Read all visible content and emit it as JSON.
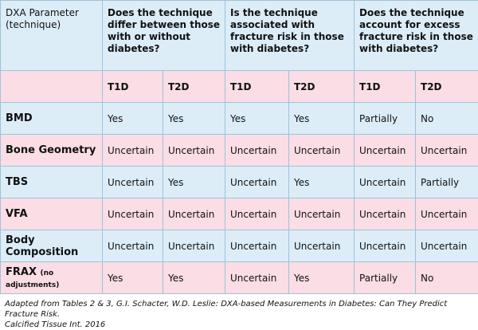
{
  "header": {
    "parameter": "DXA Parameter (technique)",
    "questions": [
      "Does the technique differ between those with or without diabetes?",
      "Is the technique associated with fracture risk in those with diabetes?",
      "Does the technique account for excess fracture risk in those with diabetes?"
    ]
  },
  "subheader": [
    "T1D",
    "T2D",
    "T1D",
    "T2D",
    "T1D",
    "T2D"
  ],
  "rows": [
    {
      "label": "BMD",
      "cells": [
        "Yes",
        "Yes",
        "Yes",
        "Yes",
        "Partially",
        "No"
      ]
    },
    {
      "label": "Bone Geometry",
      "cells": [
        "Uncertain",
        "Uncertain",
        "Uncertain",
        "Uncertain",
        "Uncertain",
        "Uncertain"
      ]
    },
    {
      "label": "TBS",
      "cells": [
        "Uncertain",
        "Yes",
        "Uncertain",
        "Yes",
        "Uncertain",
        "Partially"
      ]
    },
    {
      "label": "VFA",
      "cells": [
        "Uncertain",
        "Uncertain",
        "Uncertain",
        "Uncertain",
        "Uncertain",
        "Uncertain"
      ]
    },
    {
      "label": "Body Composition",
      "cells": [
        "Uncertain",
        "Uncertain",
        "Uncertain",
        "Uncertain",
        "Uncertain",
        "Uncertain"
      ]
    },
    {
      "label": "FRAX",
      "note": "(no adjustments)",
      "cells": [
        "Yes",
        "Yes",
        "Uncertain",
        "Yes",
        "Partially",
        "No"
      ]
    }
  ],
  "footnote": [
    "Adapted from Tables 2 & 3, G.I. Schacter, W.D. Leslie: DXA-based Measurements in Diabetes: Can They Predict Fracture Risk.",
    "Calcified Tissue Int. 2016"
  ]
}
